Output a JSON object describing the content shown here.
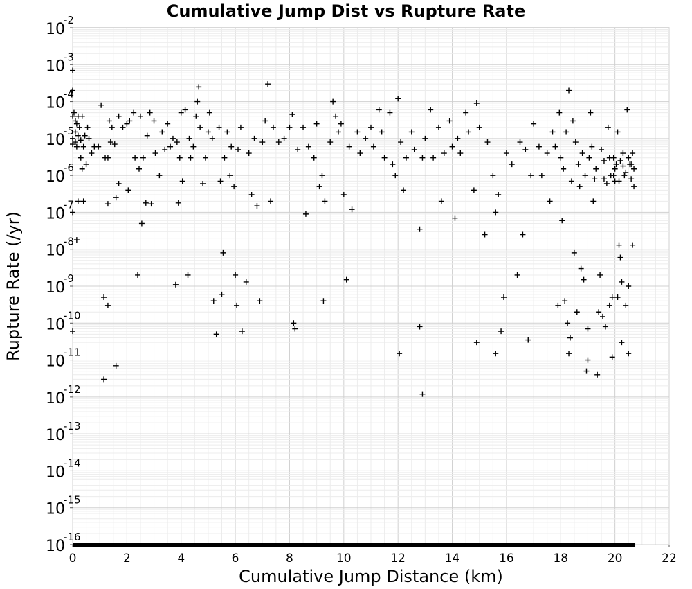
{
  "chart_data": {
    "type": "scatter",
    "title": "Cumulative Jump Dist vs Rupture Rate",
    "xlabel": "Cumulative Jump Distance (km)",
    "ylabel": "Rupture Rate (/yr)",
    "xlim": [
      0,
      22
    ],
    "ylim": [
      1e-16,
      0.01
    ],
    "yscale": "log",
    "xticks": [
      0,
      2,
      4,
      6,
      8,
      10,
      12,
      14,
      16,
      18,
      20,
      22
    ],
    "yticks": [
      {
        "base": "10",
        "exp": "-2"
      },
      {
        "base": "10",
        "exp": "-3"
      },
      {
        "base": "10",
        "exp": "-4"
      },
      {
        "base": "10",
        "exp": "-5"
      },
      {
        "base": "10",
        "exp": "-6"
      },
      {
        "base": "10",
        "exp": "-7"
      },
      {
        "base": "10",
        "exp": "-8"
      },
      {
        "base": "10",
        "exp": "-9"
      },
      {
        "base": "10",
        "exp": "-10"
      },
      {
        "base": "10",
        "exp": "-11"
      },
      {
        "base": "10",
        "exp": "-12"
      },
      {
        "base": "10",
        "exp": "-13"
      },
      {
        "base": "10",
        "exp": "-14"
      },
      {
        "base": "10",
        "exp": "-15"
      },
      {
        "base": "10",
        "exp": "-16"
      }
    ],
    "grid": true,
    "marker": "+",
    "color": "#000000",
    "zero_rate_band": {
      "x_range": [
        0,
        20.75
      ],
      "y": 1e-16
    },
    "points": [
      [
        0.0,
        4e-05
      ],
      [
        0.0,
        1e-05
      ],
      [
        0.0,
        7e-06
      ],
      [
        0.0,
        0.0002
      ],
      [
        0.0,
        0.0007
      ],
      [
        0.0,
        1e-07
      ],
      [
        0.0,
        6e-11
      ],
      [
        0.05,
        5e-05
      ],
      [
        0.1,
        3e-05
      ],
      [
        0.1,
        1.5e-05
      ],
      [
        0.1,
        8e-06
      ],
      [
        0.15,
        2.5e-05
      ],
      [
        0.15,
        6e-06
      ],
      [
        0.2,
        4e-05
      ],
      [
        0.2,
        1.2e-05
      ],
      [
        0.2,
        2e-07
      ],
      [
        0.15,
        1.8e-08
      ],
      [
        0.25,
        2e-05
      ],
      [
        0.3,
        9e-06
      ],
      [
        0.3,
        3e-06
      ],
      [
        0.35,
        1.5e-06
      ],
      [
        0.35,
        4e-05
      ],
      [
        0.4,
        2e-07
      ],
      [
        0.4,
        6e-06
      ],
      [
        0.45,
        1.2e-05
      ],
      [
        0.5,
        2e-06
      ],
      [
        0.55,
        2e-05
      ],
      [
        0.6,
        1e-05
      ],
      [
        0.7,
        4e-06
      ],
      [
        0.8,
        6e-06
      ],
      [
        0.95,
        6e-06
      ],
      [
        1.05,
        8e-05
      ],
      [
        1.15,
        5e-10
      ],
      [
        1.15,
        3e-12
      ],
      [
        1.2,
        3e-06
      ],
      [
        1.3,
        3e-06
      ],
      [
        1.3,
        3e-10
      ],
      [
        1.3,
        1.7e-07
      ],
      [
        1.35,
        3e-05
      ],
      [
        1.4,
        8e-06
      ],
      [
        1.45,
        2e-05
      ],
      [
        1.55,
        7e-06
      ],
      [
        1.6,
        7e-12
      ],
      [
        1.6,
        2.5e-07
      ],
      [
        1.7,
        4e-05
      ],
      [
        1.7,
        6e-07
      ],
      [
        1.85,
        2e-05
      ],
      [
        2.0,
        2.5e-05
      ],
      [
        2.05,
        4e-07
      ],
      [
        2.1,
        3e-05
      ],
      [
        2.25,
        5e-05
      ],
      [
        2.3,
        3e-06
      ],
      [
        2.4,
        2e-09
      ],
      [
        2.45,
        1.5e-06
      ],
      [
        2.5,
        4e-05
      ],
      [
        2.55,
        5e-08
      ],
      [
        2.6,
        3e-06
      ],
      [
        2.7,
        1.8e-07
      ],
      [
        2.75,
        1.2e-05
      ],
      [
        2.85,
        5e-05
      ],
      [
        2.9,
        1.7e-07
      ],
      [
        3.0,
        3e-05
      ],
      [
        3.05,
        4e-06
      ],
      [
        3.2,
        1e-06
      ],
      [
        3.3,
        1.5e-05
      ],
      [
        3.4,
        5e-06
      ],
      [
        3.5,
        2.5e-05
      ],
      [
        3.6,
        6e-06
      ],
      [
        3.7,
        1e-05
      ],
      [
        3.8,
        1.1e-09
      ],
      [
        3.85,
        8e-06
      ],
      [
        3.9,
        1.8e-07
      ],
      [
        3.95,
        3e-06
      ],
      [
        4.0,
        5e-05
      ],
      [
        4.05,
        7e-07
      ],
      [
        4.15,
        6e-05
      ],
      [
        4.25,
        2e-09
      ],
      [
        4.3,
        1e-05
      ],
      [
        4.35,
        3e-06
      ],
      [
        4.45,
        6e-06
      ],
      [
        4.55,
        4e-05
      ],
      [
        4.6,
        0.0001
      ],
      [
        4.65,
        0.00025
      ],
      [
        4.7,
        2e-05
      ],
      [
        4.8,
        6e-07
      ],
      [
        4.9,
        3e-06
      ],
      [
        5.0,
        1.5e-05
      ],
      [
        5.05,
        5e-05
      ],
      [
        5.15,
        1e-05
      ],
      [
        5.2,
        4e-10
      ],
      [
        5.3,
        5e-11
      ],
      [
        5.4,
        2e-05
      ],
      [
        5.45,
        7e-07
      ],
      [
        5.5,
        6e-10
      ],
      [
        5.55,
        8e-09
      ],
      [
        5.6,
        3e-06
      ],
      [
        5.7,
        1.5e-05
      ],
      [
        5.8,
        1e-06
      ],
      [
        5.85,
        6e-06
      ],
      [
        5.95,
        5e-07
      ],
      [
        6.0,
        2e-09
      ],
      [
        6.05,
        3e-10
      ],
      [
        6.1,
        5e-06
      ],
      [
        6.2,
        2e-05
      ],
      [
        6.25,
        6e-11
      ],
      [
        6.4,
        1.3e-09
      ],
      [
        6.5,
        4e-06
      ],
      [
        6.6,
        3e-07
      ],
      [
        6.7,
        1e-05
      ],
      [
        6.8,
        1.5e-07
      ],
      [
        6.9,
        4e-10
      ],
      [
        7.0,
        8e-06
      ],
      [
        7.1,
        3e-05
      ],
      [
        7.2,
        0.0003
      ],
      [
        7.3,
        2e-07
      ],
      [
        7.4,
        2e-05
      ],
      [
        7.6,
        8e-06
      ],
      [
        7.8,
        1e-05
      ],
      [
        8.0,
        2e-05
      ],
      [
        8.1,
        4.5e-05
      ],
      [
        8.15,
        1e-10
      ],
      [
        8.2,
        7e-11
      ],
      [
        8.3,
        5e-06
      ],
      [
        8.5,
        2e-05
      ],
      [
        8.6,
        9e-08
      ],
      [
        8.7,
        6e-06
      ],
      [
        8.9,
        3e-06
      ],
      [
        9.0,
        2.5e-05
      ],
      [
        9.1,
        5e-07
      ],
      [
        9.2,
        1e-06
      ],
      [
        9.25,
        4e-10
      ],
      [
        9.3,
        2e-07
      ],
      [
        9.5,
        8e-06
      ],
      [
        9.6,
        0.0001
      ],
      [
        9.7,
        4e-05
      ],
      [
        9.8,
        1.5e-05
      ],
      [
        9.9,
        2.5e-05
      ],
      [
        10.0,
        3e-07
      ],
      [
        10.1,
        1.5e-09
      ],
      [
        10.2,
        6e-06
      ],
      [
        10.3,
        1.2e-07
      ],
      [
        10.5,
        1.5e-05
      ],
      [
        10.6,
        4e-06
      ],
      [
        10.8,
        1e-05
      ],
      [
        11.0,
        2e-05
      ],
      [
        11.1,
        6e-06
      ],
      [
        11.3,
        6e-05
      ],
      [
        11.4,
        1.5e-05
      ],
      [
        11.5,
        3e-06
      ],
      [
        11.7,
        5e-05
      ],
      [
        11.8,
        2e-06
      ],
      [
        11.9,
        1e-06
      ],
      [
        12.0,
        0.00012
      ],
      [
        12.05,
        1.5e-11
      ],
      [
        12.1,
        8e-06
      ],
      [
        12.2,
        4e-07
      ],
      [
        12.3,
        3e-06
      ],
      [
        12.5,
        1.5e-05
      ],
      [
        12.6,
        5e-06
      ],
      [
        12.8,
        8e-11
      ],
      [
        12.8,
        3.5e-08
      ],
      [
        12.9,
        1.2e-12
      ],
      [
        12.9,
        3e-06
      ],
      [
        13.0,
        1e-05
      ],
      [
        13.2,
        6e-05
      ],
      [
        13.3,
        3e-06
      ],
      [
        13.5,
        2e-05
      ],
      [
        13.6,
        2e-07
      ],
      [
        13.7,
        4e-06
      ],
      [
        13.9,
        3e-05
      ],
      [
        14.0,
        6e-06
      ],
      [
        14.1,
        7e-08
      ],
      [
        14.2,
        1e-05
      ],
      [
        14.3,
        4e-06
      ],
      [
        14.5,
        5e-05
      ],
      [
        14.6,
        1.5e-05
      ],
      [
        14.8,
        4e-07
      ],
      [
        14.9,
        9e-05
      ],
      [
        14.9,
        3e-11
      ],
      [
        15.0,
        2e-05
      ],
      [
        15.2,
        2.5e-08
      ],
      [
        15.3,
        8e-06
      ],
      [
        15.5,
        1e-06
      ],
      [
        15.6,
        1.5e-11
      ],
      [
        15.6,
        1e-07
      ],
      [
        15.7,
        3e-07
      ],
      [
        15.8,
        6e-11
      ],
      [
        15.9,
        5e-10
      ],
      [
        16.0,
        4e-06
      ],
      [
        16.2,
        2e-06
      ],
      [
        16.4,
        2e-09
      ],
      [
        16.5,
        8e-06
      ],
      [
        16.6,
        2.5e-08
      ],
      [
        16.7,
        5e-06
      ],
      [
        16.8,
        3.5e-11
      ],
      [
        16.9,
        1e-06
      ],
      [
        17.0,
        2.5e-05
      ],
      [
        17.2,
        6e-06
      ],
      [
        17.3,
        1e-06
      ],
      [
        17.5,
        4e-06
      ],
      [
        17.6,
        2e-07
      ],
      [
        17.7,
        1.5e-05
      ],
      [
        17.8,
        6e-06
      ],
      [
        17.9,
        3e-10
      ],
      [
        17.95,
        5e-05
      ],
      [
        18.0,
        3e-06
      ],
      [
        18.05,
        6e-08
      ],
      [
        18.1,
        1.5e-06
      ],
      [
        18.15,
        4e-10
      ],
      [
        18.2,
        1.5e-05
      ],
      [
        18.25,
        1e-10
      ],
      [
        18.3,
        0.0002
      ],
      [
        18.3,
        1.5e-11
      ],
      [
        18.35,
        4e-11
      ],
      [
        18.4,
        7e-07
      ],
      [
        18.45,
        3e-05
      ],
      [
        18.5,
        8e-09
      ],
      [
        18.55,
        8e-06
      ],
      [
        18.6,
        2e-10
      ],
      [
        18.65,
        2e-06
      ],
      [
        18.7,
        5e-07
      ],
      [
        18.75,
        3e-09
      ],
      [
        18.8,
        4e-06
      ],
      [
        18.85,
        1.5e-09
      ],
      [
        18.9,
        1e-06
      ],
      [
        18.95,
        5e-12
      ],
      [
        19.0,
        7e-11
      ],
      [
        19.0,
        1e-11
      ],
      [
        19.05,
        3e-06
      ],
      [
        19.1,
        5e-05
      ],
      [
        19.15,
        6e-06
      ],
      [
        19.2,
        2e-07
      ],
      [
        19.25,
        8e-07
      ],
      [
        19.3,
        1.5e-06
      ],
      [
        19.35,
        4e-12
      ],
      [
        19.4,
        2e-10
      ],
      [
        19.45,
        2e-09
      ],
      [
        19.5,
        5e-06
      ],
      [
        19.55,
        1.5e-10
      ],
      [
        19.6,
        2.5e-06
      ],
      [
        19.65,
        8e-11
      ],
      [
        19.7,
        6e-07
      ],
      [
        19.75,
        2e-05
      ],
      [
        19.8,
        3e-10
      ],
      [
        19.85,
        1e-06
      ],
      [
        19.9,
        5e-10
      ],
      [
        19.9,
        1.2e-11
      ],
      [
        19.95,
        3e-06
      ],
      [
        20.0,
        7e-07
      ],
      [
        20.05,
        2e-06
      ],
      [
        20.1,
        5e-10
      ],
      [
        20.1,
        1.5e-05
      ],
      [
        20.15,
        1.3e-08
      ],
      [
        20.2,
        6e-09
      ],
      [
        20.25,
        1.3e-09
      ],
      [
        20.25,
        3e-11
      ],
      [
        20.3,
        4e-06
      ],
      [
        20.35,
        1e-06
      ],
      [
        20.4,
        3e-10
      ],
      [
        20.45,
        6e-05
      ],
      [
        20.5,
        1e-09
      ],
      [
        20.5,
        1.5e-11
      ],
      [
        20.55,
        2e-06
      ],
      [
        20.6,
        8e-07
      ],
      [
        20.65,
        1.3e-08
      ],
      [
        20.65,
        4e-06
      ],
      [
        20.7,
        1.5e-06
      ],
      [
        20.7,
        5e-07
      ],
      [
        20.0,
        1.5e-06
      ],
      [
        20.2,
        2.5e-06
      ],
      [
        19.8,
        3e-06
      ],
      [
        20.4,
        1.2e-06
      ],
      [
        20.6,
        2e-06
      ],
      [
        19.6,
        8e-07
      ],
      [
        20.3,
        1.8e-06
      ],
      [
        20.5,
        3e-06
      ],
      [
        19.95,
        1e-06
      ],
      [
        20.15,
        7e-07
      ]
    ]
  }
}
